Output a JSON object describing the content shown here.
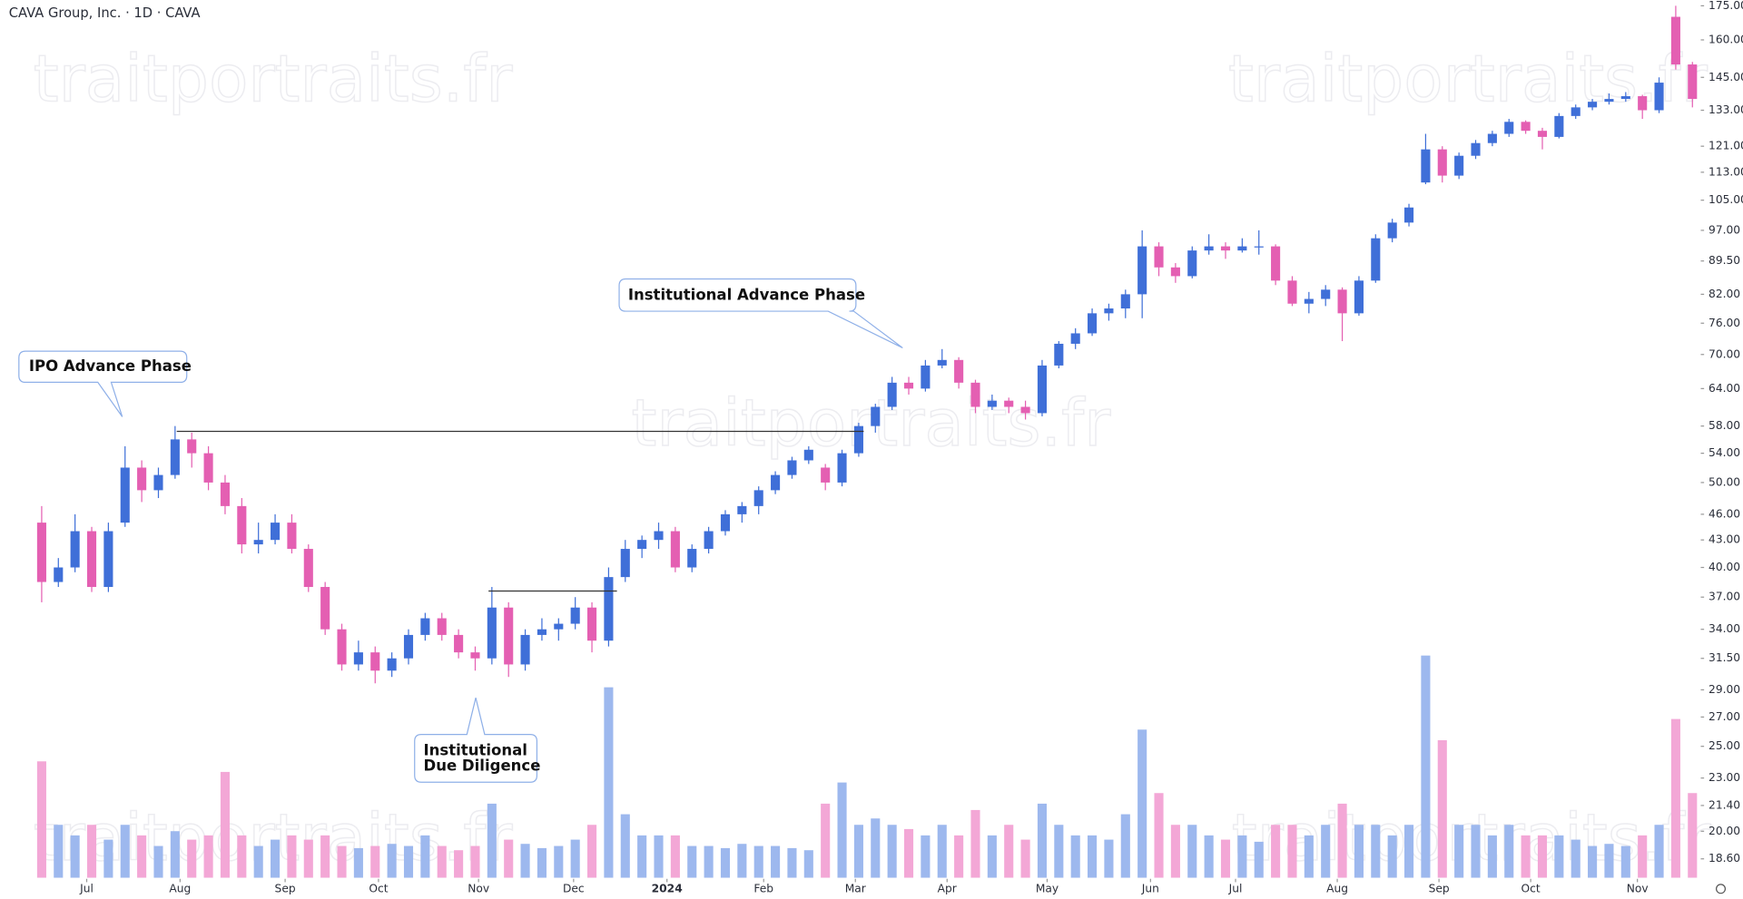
{
  "chart_data": {
    "type": "candlestick",
    "title": "CAVA Group, Inc. · 1D · CAVA",
    "watermark": "traitportraits.fr",
    "annotations": [
      "IPO Advance Phase",
      "Institutional Advance Phase",
      "Institutional",
      "Due Diligence"
    ],
    "log_scale": true,
    "up_color": "#3f6fd8",
    "down_color": "#e45fb2",
    "volume_up_color": "#9db8ee",
    "volume_down_color": "#f3a7d6",
    "level_color": "#333333",
    "xlim": [
      -2.5,
      99.5
    ],
    "xticks": [
      {
        "value": 2.7,
        "label": "Jul"
      },
      {
        "value": 8.3,
        "label": "Aug"
      },
      {
        "value": 14.6,
        "label": "Sep"
      },
      {
        "value": 20.2,
        "label": "Oct"
      },
      {
        "value": 26.2,
        "label": "Nov"
      },
      {
        "value": 31.9,
        "label": "Dec"
      },
      {
        "value": 37.5,
        "label": "2024"
      },
      {
        "value": 43.3,
        "label": "Feb"
      },
      {
        "value": 48.8,
        "label": "Mar"
      },
      {
        "value": 54.3,
        "label": "Apr"
      },
      {
        "value": 60.3,
        "label": "May"
      },
      {
        "value": 66.5,
        "label": "Jun"
      },
      {
        "value": 71.6,
        "label": "Jul"
      },
      {
        "value": 77.7,
        "label": "Aug"
      },
      {
        "value": 83.8,
        "label": "Sep"
      },
      {
        "value": 89.3,
        "label": "Oct"
      },
      {
        "value": 95.7,
        "label": "Nov"
      }
    ],
    "ylim": [
      17.7,
      177.6
    ],
    "yticks": [
      {
        "value": 18.6,
        "label": "18.60"
      },
      {
        "value": 20,
        "label": "20.00"
      },
      {
        "value": 21.4,
        "label": "21.40"
      },
      {
        "value": 23,
        "label": "23.00"
      },
      {
        "value": 25,
        "label": "25.00"
      },
      {
        "value": 27,
        "label": "27.00"
      },
      {
        "value": 29,
        "label": "29.00"
      },
      {
        "value": 31.5,
        "label": "31.50"
      },
      {
        "value": 34,
        "label": "34.00"
      },
      {
        "value": 37,
        "label": "37.00"
      },
      {
        "value": 40,
        "label": "40.00"
      },
      {
        "value": 43,
        "label": "43.00"
      },
      {
        "value": 46,
        "label": "46.00"
      },
      {
        "value": 50,
        "label": "50.00"
      },
      {
        "value": 54,
        "label": "54.00"
      },
      {
        "value": 58,
        "label": "58.00"
      },
      {
        "value": 64,
        "label": "64.00"
      },
      {
        "value": 70,
        "label": "70.00"
      },
      {
        "value": 76,
        "label": "76.00"
      },
      {
        "value": 82,
        "label": "82.00"
      },
      {
        "value": 89.5,
        "label": "89.50"
      },
      {
        "value": 97,
        "label": "97.00"
      },
      {
        "value": 105,
        "label": "105.00"
      },
      {
        "value": 113,
        "label": "113.00"
      },
      {
        "value": 121,
        "label": "121.00"
      },
      {
        "value": 133,
        "label": "133.00"
      },
      {
        "value": 145,
        "label": "145.00"
      },
      {
        "value": 160,
        "label": "160.00"
      },
      {
        "value": 175,
        "label": "175.00"
      }
    ],
    "volume_lim": [
      0,
      10.5
    ],
    "levels": [
      {
        "price": 57.2,
        "from": 8.1,
        "to": 49.3
      },
      {
        "price": 37.6,
        "from": 26.8,
        "to": 34.5
      }
    ],
    "open": [
      45,
      38.5,
      40,
      44,
      38,
      45,
      52,
      49,
      51,
      56,
      54,
      50,
      47,
      42.5,
      43,
      45,
      42,
      38,
      34,
      31,
      32,
      30.5,
      31.5,
      33.5,
      35,
      33.5,
      32,
      31.5,
      36,
      31,
      33.5,
      34,
      34.5,
      36,
      33,
      39,
      42,
      43,
      44,
      40,
      42,
      44,
      46,
      47,
      49,
      51,
      53,
      52,
      50,
      54,
      58,
      61,
      65,
      64,
      68,
      69,
      65,
      61,
      62,
      61,
      60,
      68,
      72,
      74,
      78,
      79,
      82,
      93,
      88,
      86,
      92,
      93,
      92,
      93,
      93,
      85,
      80,
      81,
      83,
      78,
      85,
      95,
      99,
      110,
      120,
      112,
      118,
      122,
      125,
      129,
      126,
      124,
      131,
      134,
      136,
      137,
      138,
      133,
      170,
      150
    ],
    "high": [
      47,
      41,
      46,
      44.5,
      45,
      55,
      53,
      52,
      58,
      57,
      55,
      51,
      48,
      45,
      46,
      46,
      42.5,
      38.5,
      34.5,
      33,
      32.5,
      32,
      34,
      35.5,
      35.5,
      34,
      32.5,
      38,
      36.5,
      34,
      35,
      35,
      37,
      36.5,
      40,
      43,
      43.5,
      45,
      44.5,
      42.5,
      44.5,
      46.5,
      47.5,
      49.5,
      51.5,
      53.5,
      55,
      52.5,
      54.5,
      58.5,
      61.5,
      66,
      66,
      69,
      71,
      69.5,
      65.5,
      63,
      62.5,
      62,
      69,
      72.5,
      75,
      79,
      80,
      83,
      97,
      94,
      89,
      93,
      96,
      94,
      95,
      97,
      93.5,
      86,
      82.5,
      84,
      83.5,
      86,
      96,
      100,
      104,
      125,
      121,
      119,
      123,
      126,
      130,
      129.5,
      127,
      132,
      135,
      137,
      139,
      139.5,
      138.5,
      145,
      175,
      151
    ],
    "low": [
      36.5,
      38,
      39.5,
      37.5,
      37.5,
      44.5,
      47.5,
      48,
      50.5,
      52,
      49,
      46,
      41.5,
      41.5,
      42.5,
      41.5,
      37.5,
      33.5,
      30.5,
      30.5,
      29.5,
      30,
      31,
      33,
      33,
      31.5,
      30.5,
      31,
      30,
      30.5,
      33,
      33,
      34,
      32,
      32.5,
      38.5,
      41,
      42,
      39.5,
      39.5,
      41.5,
      43.5,
      45,
      46,
      48.5,
      50.5,
      52.5,
      49,
      49.5,
      53.5,
      57,
      60.5,
      63,
      63.5,
      67.5,
      64,
      60,
      60.5,
      60,
      59,
      59.5,
      67.5,
      71,
      73.5,
      76.5,
      77,
      77,
      86,
      84.5,
      85.5,
      91,
      90,
      91.5,
      91,
      84,
      79.5,
      78,
      79.5,
      72.5,
      77.5,
      84.5,
      94,
      98,
      109.5,
      110,
      111,
      117,
      121,
      124,
      125,
      120,
      123.5,
      130,
      133,
      135,
      136,
      130,
      132,
      148,
      134
    ],
    "close": [
      38.5,
      40,
      44,
      38,
      44,
      52,
      49,
      51,
      56,
      54,
      50,
      47,
      42.5,
      43,
      45,
      42,
      38,
      34,
      31,
      32,
      30.5,
      31.5,
      33.5,
      35,
      33.5,
      32,
      31.5,
      36,
      31,
      33.5,
      34,
      34.5,
      36,
      33,
      39,
      42,
      43,
      44,
      40,
      42,
      44,
      46,
      47,
      49,
      51,
      53,
      54.5,
      50,
      54,
      58,
      61,
      65,
      64,
      68,
      69,
      65,
      61,
      62,
      61,
      60,
      68,
      72,
      74,
      78,
      79,
      82,
      93,
      88,
      86,
      92,
      93,
      92,
      93,
      93,
      85,
      80,
      81,
      83,
      78,
      85,
      95,
      99,
      103,
      120,
      112,
      118,
      122,
      125,
      129,
      126,
      124,
      131,
      134,
      136,
      137,
      138,
      133,
      143,
      150,
      137
    ],
    "volume": [
      5.5,
      2.5,
      2,
      2.5,
      1.8,
      2.5,
      2,
      1.5,
      2.2,
      1.8,
      2,
      5,
      2,
      1.5,
      1.8,
      2,
      1.8,
      2,
      1.5,
      1.4,
      1.5,
      1.6,
      1.5,
      2,
      1.5,
      1.3,
      1.5,
      3.5,
      1.8,
      1.6,
      1.4,
      1.5,
      1.8,
      2.5,
      9,
      3,
      2,
      2,
      2,
      1.5,
      1.5,
      1.4,
      1.6,
      1.5,
      1.5,
      1.4,
      1.3,
      3.5,
      4.5,
      2.5,
      2.8,
      2.5,
      2.3,
      2,
      2.5,
      2,
      3.2,
      2,
      2.5,
      1.8,
      3.5,
      2.5,
      2,
      2,
      1.8,
      3,
      7,
      4,
      2.5,
      2.5,
      2,
      1.8,
      2,
      1.7,
      2.5,
      2.5,
      2,
      2.5,
      3.5,
      2.5,
      2.5,
      2,
      2.5,
      10.5,
      6.5,
      2.5,
      2.5,
      2,
      2.5,
      2,
      2,
      2,
      1.8,
      1.5,
      1.6,
      1.5,
      2,
      2.5,
      7.5,
      4
    ]
  }
}
